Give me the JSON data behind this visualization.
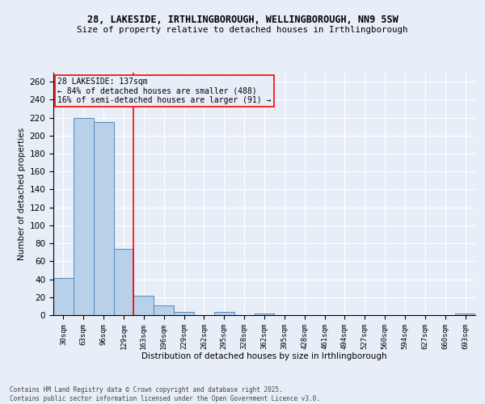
{
  "title_line1": "28, LAKESIDE, IRTHLINGBOROUGH, WELLINGBOROUGH, NN9 5SW",
  "title_line2": "Size of property relative to detached houses in Irthlingborough",
  "xlabel": "Distribution of detached houses by size in Irthlingborough",
  "ylabel": "Number of detached properties",
  "footer_line1": "Contains HM Land Registry data © Crown copyright and database right 2025.",
  "footer_line2": "Contains public sector information licensed under the Open Government Licence v3.0.",
  "annotation_line1": "28 LAKESIDE: 137sqm",
  "annotation_line2": "← 84% of detached houses are smaller (488)",
  "annotation_line3": "16% of semi-detached houses are larger (91) →",
  "bar_color": "#b8d0e8",
  "bar_edge_color": "#5588bb",
  "subject_line_color": "red",
  "background_color": "#e8eef8",
  "grid_color": "white",
  "categories": [
    "30sqm",
    "63sqm",
    "96sqm",
    "129sqm",
    "163sqm",
    "196sqm",
    "229sqm",
    "262sqm",
    "295sqm",
    "328sqm",
    "362sqm",
    "395sqm",
    "428sqm",
    "461sqm",
    "494sqm",
    "527sqm",
    "560sqm",
    "594sqm",
    "627sqm",
    "660sqm",
    "693sqm"
  ],
  "values": [
    41,
    220,
    215,
    74,
    22,
    11,
    4,
    0,
    4,
    0,
    2,
    0,
    0,
    0,
    0,
    0,
    0,
    0,
    0,
    0,
    2
  ],
  "ylim": [
    0,
    270
  ],
  "yticks": [
    0,
    20,
    40,
    60,
    80,
    100,
    120,
    140,
    160,
    180,
    200,
    220,
    240,
    260
  ],
  "subject_bar_index": 3
}
